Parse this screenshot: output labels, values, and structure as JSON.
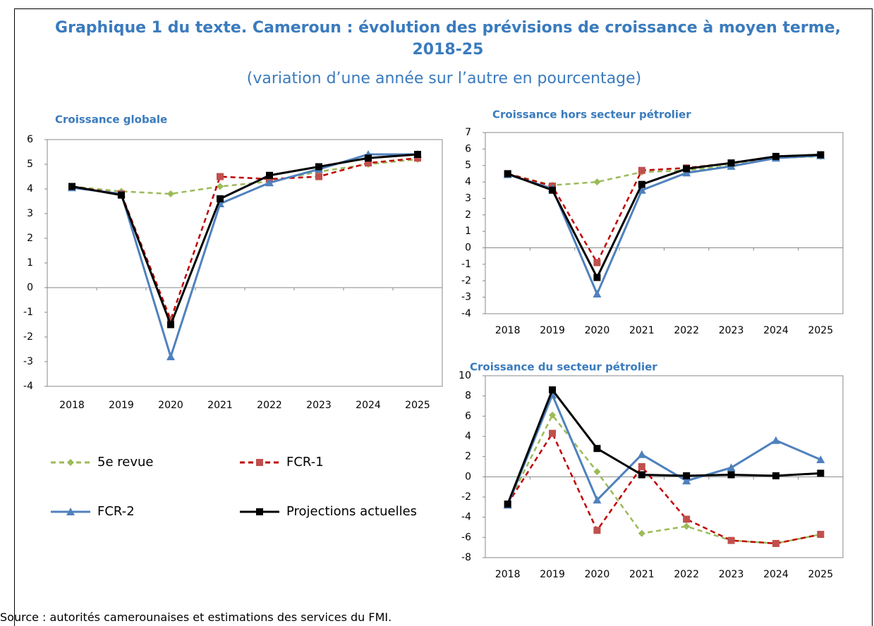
{
  "title": "Graphique 1 du texte. Cameroun : évolution des prévisions de croissance à moyen terme, 2018-25",
  "subtitle": "(variation d’une année sur l’autre en pourcentage)",
  "source": "Source : autorités camerounaises et estimations des services du FMI.",
  "chart_data": [
    {
      "type": "line",
      "title": "Croissance globale",
      "categories": [
        "2018",
        "2019",
        "2020",
        "2021",
        "2022",
        "2023",
        "2024",
        "2025"
      ],
      "ylim": [
        -4,
        6
      ],
      "yticks": [
        -4,
        -3,
        -2,
        -1,
        0,
        1,
        2,
        3,
        4,
        5,
        6
      ],
      "series": [
        {
          "name": "5e revue",
          "color": "#9bbb59",
          "marker": "diamond",
          "dash": true,
          "values": [
            4.1,
            3.9,
            3.8,
            4.1,
            4.3,
            4.7,
            5.0,
            5.2
          ]
        },
        {
          "name": "FCR-1",
          "color": "#c0504d",
          "line_color": "#c00000",
          "marker": "square",
          "dash": true,
          "values": [
            4.1,
            3.8,
            -1.3,
            4.5,
            4.4,
            4.5,
            5.05,
            5.25
          ]
        },
        {
          "name": "FCR-2",
          "color": "#4f81bd",
          "marker": "triangle",
          "dash": false,
          "values": [
            4.05,
            3.8,
            -2.8,
            3.4,
            4.25,
            4.8,
            5.4,
            5.4
          ]
        },
        {
          "name": "Projections actuelles",
          "color": "#000000",
          "marker": "square",
          "dash": false,
          "values": [
            4.1,
            3.75,
            -1.5,
            3.6,
            4.55,
            4.9,
            5.25,
            5.4
          ]
        }
      ]
    },
    {
      "type": "line",
      "title": "Croissance hors secteur pétrolier",
      "categories": [
        "2018",
        "2019",
        "2020",
        "2021",
        "2022",
        "2023",
        "2024",
        "2025"
      ],
      "ylim": [
        -4,
        7
      ],
      "yticks": [
        -4,
        -3,
        -2,
        -1,
        0,
        1,
        2,
        3,
        4,
        5,
        6,
        7
      ],
      "series": [
        {
          "name": "5e revue",
          "color": "#9bbb59",
          "marker": "diamond",
          "dash": true,
          "values": [
            4.5,
            3.8,
            4.0,
            4.6,
            4.7,
            5.0,
            5.45,
            5.55
          ]
        },
        {
          "name": "FCR-1",
          "color": "#c0504d",
          "line_color": "#c00000",
          "marker": "square",
          "dash": true,
          "values": [
            4.5,
            3.75,
            -0.9,
            4.7,
            4.85,
            5.15,
            5.5,
            5.65
          ]
        },
        {
          "name": "FCR-2",
          "color": "#4f81bd",
          "marker": "triangle",
          "dash": false,
          "values": [
            4.45,
            3.6,
            -2.8,
            3.5,
            4.55,
            4.95,
            5.45,
            5.6
          ]
        },
        {
          "name": "Projections actuelles",
          "color": "#000000",
          "marker": "square",
          "dash": false,
          "values": [
            4.5,
            3.5,
            -1.8,
            3.85,
            4.8,
            5.15,
            5.55,
            5.65
          ]
        }
      ]
    },
    {
      "type": "line",
      "title": "Croissance du secteur pétrolier",
      "categories": [
        "2018",
        "2019",
        "2020",
        "2021",
        "2022",
        "2023",
        "2024",
        "2025"
      ],
      "ylim": [
        -8,
        10
      ],
      "yticks": [
        -8,
        -6,
        -4,
        -2,
        0,
        2,
        4,
        6,
        8,
        10
      ],
      "series": [
        {
          "name": "5e revue",
          "color": "#9bbb59",
          "marker": "diamond",
          "dash": true,
          "values": [
            -2.7,
            6.1,
            0.5,
            -5.6,
            -4.9,
            -6.3,
            -6.6,
            -5.7
          ]
        },
        {
          "name": "FCR-1",
          "color": "#c0504d",
          "line_color": "#c00000",
          "marker": "square",
          "dash": true,
          "values": [
            -2.7,
            4.3,
            -5.3,
            1.0,
            -4.2,
            -6.3,
            -6.6,
            -5.7
          ]
        },
        {
          "name": "FCR-2",
          "color": "#4f81bd",
          "marker": "triangle",
          "dash": false,
          "values": [
            -2.8,
            8.1,
            -2.3,
            2.2,
            -0.4,
            0.9,
            3.6,
            1.7
          ]
        },
        {
          "name": "Projections actuelles",
          "color": "#000000",
          "marker": "square",
          "dash": false,
          "values": [
            -2.7,
            8.6,
            2.8,
            0.2,
            0.1,
            0.2,
            0.1,
            0.35
          ]
        }
      ]
    }
  ]
}
